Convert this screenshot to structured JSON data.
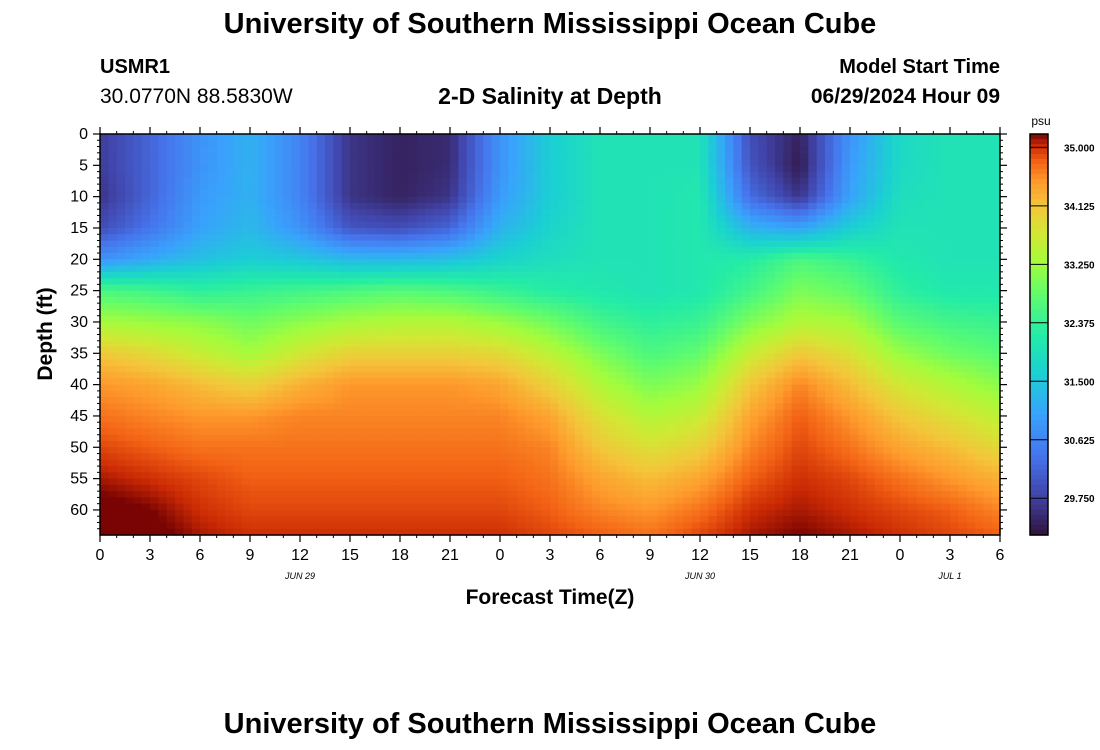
{
  "header": {
    "title": "University of Southern Mississippi Ocean Cube",
    "station_id": "USMR1",
    "station_coords": "30.0770N  88.5830W",
    "plot_title": "2-D Salinity at Depth",
    "model_start_label": "Model Start Time",
    "model_start_time": "06/29/2024 Hour 09"
  },
  "footer": {
    "title": "University of Southern Mississippi Ocean Cube"
  },
  "chart_data": {
    "type": "heatmap",
    "title": "2-D Salinity at Depth",
    "xlabel": "Forecast Time(Z)",
    "ylabel": "Depth (ft)",
    "x_ticks": [
      "0",
      "3",
      "6",
      "9",
      "12",
      "15",
      "18",
      "21",
      "0",
      "3",
      "6",
      "9",
      "12",
      "15",
      "18",
      "21",
      "0",
      "3",
      "6"
    ],
    "x_hours": [
      0,
      3,
      6,
      9,
      12,
      15,
      18,
      21,
      24,
      27,
      30,
      33,
      36,
      39,
      42,
      45,
      48,
      51,
      54
    ],
    "x_date_labels": [
      {
        "label": "JUN 29",
        "hour": 12
      },
      {
        "label": "JUN 30",
        "hour": 36
      },
      {
        "label": "JUL 1",
        "hour": 51
      }
    ],
    "xlim": [
      0,
      54
    ],
    "y_ticks": [
      0,
      5,
      10,
      15,
      20,
      25,
      30,
      35,
      40,
      45,
      50,
      55,
      60
    ],
    "ylim": [
      0,
      64
    ],
    "y_inverted": true,
    "colorbar": {
      "unit": "psu",
      "range": [
        29.2,
        35.2
      ],
      "tick_values": [
        35.0,
        34.125,
        33.25,
        32.375,
        31.5,
        30.625,
        29.75
      ],
      "tick_labels": [
        "35.000",
        "34.125",
        "33.250",
        "32.375",
        "31.500",
        "30.625",
        "29.750"
      ]
    },
    "grid_hours": [
      0,
      3,
      6,
      9,
      12,
      15,
      18,
      21,
      24,
      27,
      30,
      33,
      36,
      39,
      42,
      45,
      48,
      51,
      54
    ],
    "grid_depths": [
      0,
      5,
      10,
      15,
      20,
      25,
      30,
      35,
      40,
      45,
      50,
      55,
      60,
      64
    ],
    "salinity": [
      [
        29.7,
        30.2,
        30.8,
        31.2,
        30.6,
        29.6,
        29.4,
        29.5,
        30.8,
        31.6,
        32.0,
        32.0,
        32.0,
        29.9,
        29.4,
        30.8,
        31.8,
        32.0,
        32.0
      ],
      [
        29.7,
        30.2,
        30.8,
        31.2,
        30.6,
        29.6,
        29.4,
        29.5,
        30.8,
        31.6,
        32.0,
        32.0,
        32.0,
        30.0,
        29.3,
        30.9,
        31.8,
        32.0,
        32.0
      ],
      [
        29.6,
        30.2,
        30.9,
        31.2,
        30.6,
        29.6,
        29.4,
        29.6,
        30.9,
        31.6,
        32.0,
        32.0,
        32.1,
        30.3,
        29.6,
        31.0,
        31.9,
        32.0,
        32.0
      ],
      [
        29.9,
        30.4,
        31.0,
        31.3,
        30.8,
        30.0,
        29.9,
        30.2,
        31.2,
        31.7,
        32.0,
        32.0,
        32.1,
        31.2,
        31.0,
        31.6,
        32.0,
        32.0,
        32.0
      ],
      [
        30.8,
        31.1,
        31.4,
        31.6,
        31.5,
        31.3,
        31.3,
        31.4,
        31.7,
        31.9,
        32.0,
        32.0,
        32.1,
        32.2,
        32.6,
        32.4,
        32.1,
        32.0,
        32.0
      ],
      [
        32.6,
        32.5,
        32.3,
        32.4,
        32.5,
        32.6,
        32.7,
        32.6,
        32.4,
        32.2,
        32.1,
        32.0,
        32.1,
        32.5,
        33.0,
        32.8,
        32.3,
        32.1,
        32.1
      ],
      [
        33.3,
        33.2,
        33.1,
        32.9,
        33.1,
        33.3,
        33.4,
        33.4,
        33.2,
        32.9,
        32.5,
        32.3,
        32.4,
        33.0,
        33.4,
        33.3,
        32.7,
        32.5,
        32.4
      ],
      [
        34.1,
        33.9,
        33.6,
        33.3,
        33.7,
        34.0,
        34.0,
        34.0,
        33.9,
        33.5,
        33.0,
        32.6,
        32.8,
        33.6,
        34.1,
        33.8,
        33.2,
        32.9,
        32.7
      ],
      [
        34.5,
        34.4,
        34.2,
        34.0,
        34.3,
        34.5,
        34.5,
        34.5,
        34.4,
        34.0,
        33.4,
        33.0,
        33.2,
        34.1,
        34.6,
        34.2,
        33.7,
        33.4,
        33.1
      ],
      [
        34.7,
        34.6,
        34.5,
        34.5,
        34.6,
        34.6,
        34.6,
        34.6,
        34.6,
        34.4,
        33.8,
        33.4,
        33.6,
        34.4,
        34.8,
        34.5,
        34.1,
        33.8,
        33.5
      ],
      [
        34.9,
        34.8,
        34.7,
        34.7,
        34.7,
        34.7,
        34.7,
        34.7,
        34.7,
        34.6,
        34.1,
        33.8,
        34.0,
        34.6,
        34.9,
        34.7,
        34.4,
        34.2,
        33.9
      ],
      [
        35.1,
        35.0,
        34.9,
        34.8,
        34.8,
        34.8,
        34.8,
        34.8,
        34.8,
        34.7,
        34.4,
        34.2,
        34.4,
        34.8,
        35.0,
        34.9,
        34.7,
        34.5,
        34.3
      ],
      [
        35.3,
        35.2,
        35.0,
        34.9,
        34.9,
        34.9,
        34.9,
        34.9,
        34.9,
        34.8,
        34.6,
        34.5,
        34.7,
        35.0,
        35.1,
        35.0,
        34.9,
        34.8,
        34.6
      ],
      [
        35.4,
        35.3,
        35.1,
        35.0,
        35.0,
        35.0,
        35.0,
        35.0,
        35.0,
        34.9,
        34.8,
        34.7,
        34.9,
        35.1,
        35.2,
        35.1,
        35.0,
        34.9,
        34.8
      ]
    ]
  }
}
